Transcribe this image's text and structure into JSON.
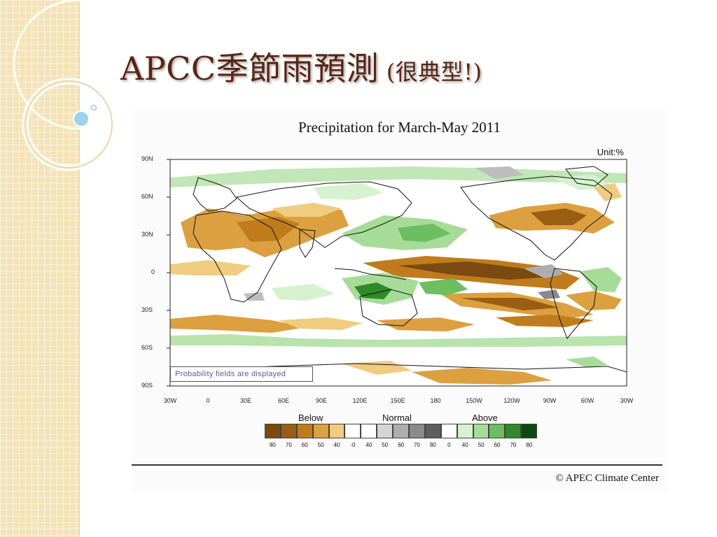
{
  "slide": {
    "title_main": "APCC季節雨預測",
    "title_sub": " (很典型!)"
  },
  "figure": {
    "title": "Precipitation for March-May 2011",
    "unit": "Unit:%",
    "lat_ticks": [
      "90N",
      "60N",
      "30N",
      "0",
      "30S",
      "60S",
      "90S"
    ],
    "lon_ticks": [
      "30W",
      "0",
      "30E",
      "60E",
      "90E",
      "120E",
      "150E",
      "180",
      "150W",
      "120W",
      "90W",
      "60W",
      "30W"
    ],
    "note": "Probability fields are displayed",
    "credit": "© APEC Climate Center"
  },
  "legend": {
    "below_label": "Below",
    "normal_label": "Normal",
    "above_label": "Above",
    "labels": [
      "80",
      "70",
      "60",
      "50",
      "40",
      "-0",
      "40",
      "50",
      "60",
      "70",
      "80",
      "0",
      "40",
      "50",
      "60",
      "70",
      "80"
    ],
    "colors": [
      "#7a4a10",
      "#9a5e12",
      "#c07c1c",
      "#dca040",
      "#f0cc80",
      "#ffffff",
      "#ffffff",
      "#d4d4d4",
      "#aeaeae",
      "#8a8a8a",
      "#5e5e5e",
      "#ffffff",
      "#d6f2ce",
      "#a6dc98",
      "#6cbe60",
      "#2f8a2a",
      "#0e4a0e"
    ]
  }
}
